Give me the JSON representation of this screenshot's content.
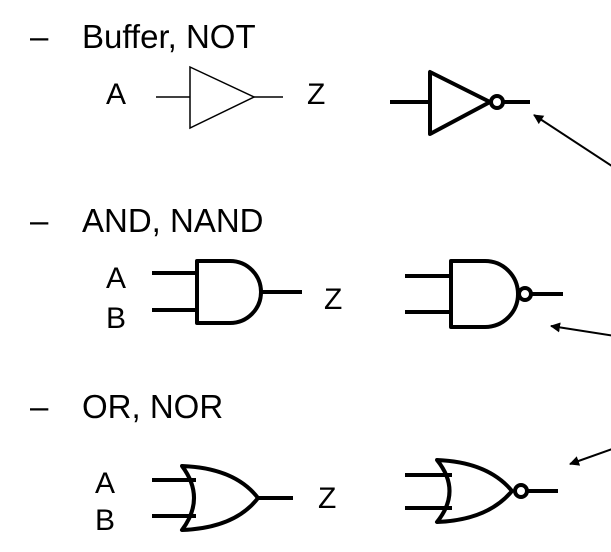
{
  "sections": [
    {
      "bullet": "–",
      "title": "Buffer, NOT",
      "inputs": [
        "A"
      ],
      "output": "Z",
      "gates": [
        "buffer",
        "not"
      ]
    },
    {
      "bullet": "–",
      "title": "AND, NAND",
      "inputs": [
        "A",
        "B"
      ],
      "output": "Z",
      "gates": [
        "and",
        "nand"
      ]
    },
    {
      "bullet": "–",
      "title": "OR, NOR",
      "inputs": [
        "A",
        "B"
      ],
      "output": "Z",
      "gates": [
        "or",
        "nor"
      ]
    }
  ],
  "annotation_arrows": {
    "points_to": [
      "not-inversion-bubble",
      "nand-inversion-bubble",
      "nor-inversion-bubble"
    ],
    "direction": "from the right edge, off-screen"
  }
}
